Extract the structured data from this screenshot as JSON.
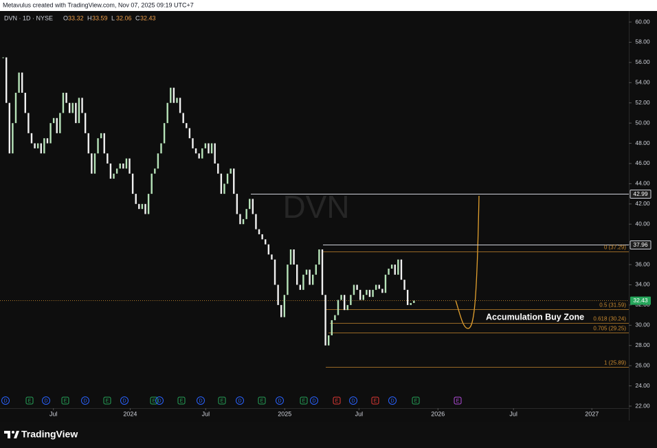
{
  "header": {
    "credit": "Metavulus created with TradingView.com, Nov 07, 2025 09:19 UTC+7"
  },
  "chart_data": {
    "type": "candlestick",
    "symbol": "DVN · 1D · NYSE",
    "ohlc": [
      {
        "label": "O",
        "value": 33.32
      },
      {
        "label": "H",
        "value": 33.59
      },
      {
        "label": "L",
        "value": 32.06
      },
      {
        "label": "C",
        "value": 32.43
      }
    ],
    "watermark": "DVN",
    "values": [
      56.5,
      52,
      47,
      50,
      53,
      55,
      53,
      51,
      49,
      48,
      47.5,
      48,
      47,
      48.5,
      48,
      50,
      50.5,
      49,
      51,
      53,
      52,
      51,
      52,
      50,
      52.5,
      51,
      49,
      47,
      45,
      47,
      48.5,
      49,
      47,
      46,
      44.5,
      45,
      45.5,
      46,
      45.5,
      46.5,
      45,
      43,
      42,
      41.5,
      42,
      41,
      43,
      45,
      45.5,
      47,
      48,
      50,
      52,
      53.5,
      52,
      52.5,
      51,
      50,
      49.5,
      48.5,
      47.5,
      47,
      46.5,
      47.5,
      48,
      47,
      48,
      46,
      45,
      43,
      44,
      45,
      45.5,
      43,
      41,
      40,
      40.5,
      41.5,
      42.5,
      41,
      39.5,
      39,
      38.5,
      38,
      37,
      36.5,
      34,
      32,
      30.8,
      33,
      36,
      37.5,
      36,
      34,
      33.5,
      35,
      35.5,
      34,
      35,
      36,
      37.5,
      33,
      28,
      29,
      30.5,
      31,
      32.5,
      33,
      31.5,
      32,
      33,
      34,
      33.5,
      32.5,
      33,
      33.5,
      32.8,
      33.5,
      34,
      33.6,
      33.2,
      35,
      35.6,
      36,
      35,
      36.5,
      34.5,
      33.5,
      32,
      32.2,
      32.43
    ],
    "up_color": "#b7e4b9",
    "down_color": "#f2f2f2",
    "ylim": [
      22,
      60.5
    ],
    "yticks": [
      {
        "value": 22,
        "label": "22.00"
      },
      {
        "value": 24,
        "label": "24.00"
      },
      {
        "value": 26,
        "label": "26.00"
      },
      {
        "value": 28,
        "label": "28.00"
      },
      {
        "value": 30,
        "label": "30.00"
      },
      {
        "value": 32,
        "label": "32.00"
      },
      {
        "value": 34,
        "label": "34.00"
      },
      {
        "value": 36,
        "label": "36.00"
      },
      {
        "value": 38,
        "label": "38.00"
      },
      {
        "value": 40,
        "label": "40.00"
      },
      {
        "value": 42,
        "label": "42.00"
      },
      {
        "value": 44,
        "label": "44.00"
      },
      {
        "value": 46,
        "label": "46.00"
      },
      {
        "value": 48,
        "label": "48.00"
      },
      {
        "value": 50,
        "label": "50.00"
      },
      {
        "value": 52,
        "label": "52.00"
      },
      {
        "value": 54,
        "label": "54.00"
      },
      {
        "value": 56,
        "label": "56.00"
      },
      {
        "value": 58,
        "label": "58.00"
      },
      {
        "value": 60,
        "label": "60.00"
      }
    ],
    "xlim": [
      -1,
      198
    ],
    "xticks": [
      {
        "value": 15.9,
        "label": "Jul"
      },
      {
        "value": 40.2,
        "label": "2024"
      },
      {
        "value": 64.1,
        "label": "Jul"
      },
      {
        "value": 89.1,
        "label": "2025"
      },
      {
        "value": 112.6,
        "label": "Jul"
      },
      {
        "value": 137.6,
        "label": "2026"
      },
      {
        "value": 161.5,
        "label": "Jul"
      },
      {
        "value": 186.3,
        "label": "2027"
      }
    ],
    "levels": [
      42.99,
      37.96
    ],
    "level_color": "#d1d4dc",
    "fib": [
      {
        "value": 37.29,
        "label": "0 (37.29)"
      },
      {
        "value": 31.59,
        "label": "0.5 (31.59)"
      },
      {
        "value": 30.24,
        "label": "0.618 (30.24)"
      },
      {
        "value": 29.25,
        "label": "0.705 (29.25)"
      },
      {
        "value": 25.89,
        "label": "1 (25.89)"
      }
    ],
    "fib_color": "#c8892f",
    "last_price": 32.43,
    "last_color": "#26a65b",
    "annotation": "Accumulation Buy Zone",
    "events": [
      {
        "label": "D",
        "color": "#2962ff"
      },
      {
        "label": "E",
        "color": "#26a65b"
      },
      {
        "label": "D",
        "color": "#2962ff"
      },
      {
        "label": "E",
        "color": "#26a65b"
      },
      {
        "label": "D",
        "color": "#2962ff"
      },
      {
        "label": "E",
        "color": "#26a65b"
      },
      {
        "label": "D",
        "color": "#2962ff"
      },
      {
        "label": "E",
        "color": "#26a65b"
      },
      {
        "label": "D",
        "color": "#2962ff"
      },
      {
        "label": "E",
        "color": "#26a65b"
      },
      {
        "label": "D",
        "color": "#2962ff"
      },
      {
        "label": "E",
        "color": "#26a65b"
      },
      {
        "label": "D",
        "color": "#2962ff"
      },
      {
        "label": "E",
        "color": "#26a65b"
      },
      {
        "label": "D",
        "color": "#2962ff"
      },
      {
        "label": "E",
        "color": "#26a65b"
      },
      {
        "label": "D",
        "color": "#2962ff"
      },
      {
        "label": "E",
        "color": "#e53935"
      },
      {
        "label": "D",
        "color": "#2962ff"
      },
      {
        "label": "E",
        "color": "#e53935"
      },
      {
        "label": "D",
        "color": "#2962ff"
      },
      {
        "label": "E",
        "color": "#26a65b"
      },
      {
        "label": "E",
        "color": "#b74fe0"
      }
    ]
  },
  "footer": {
    "brand": "TradingView"
  }
}
